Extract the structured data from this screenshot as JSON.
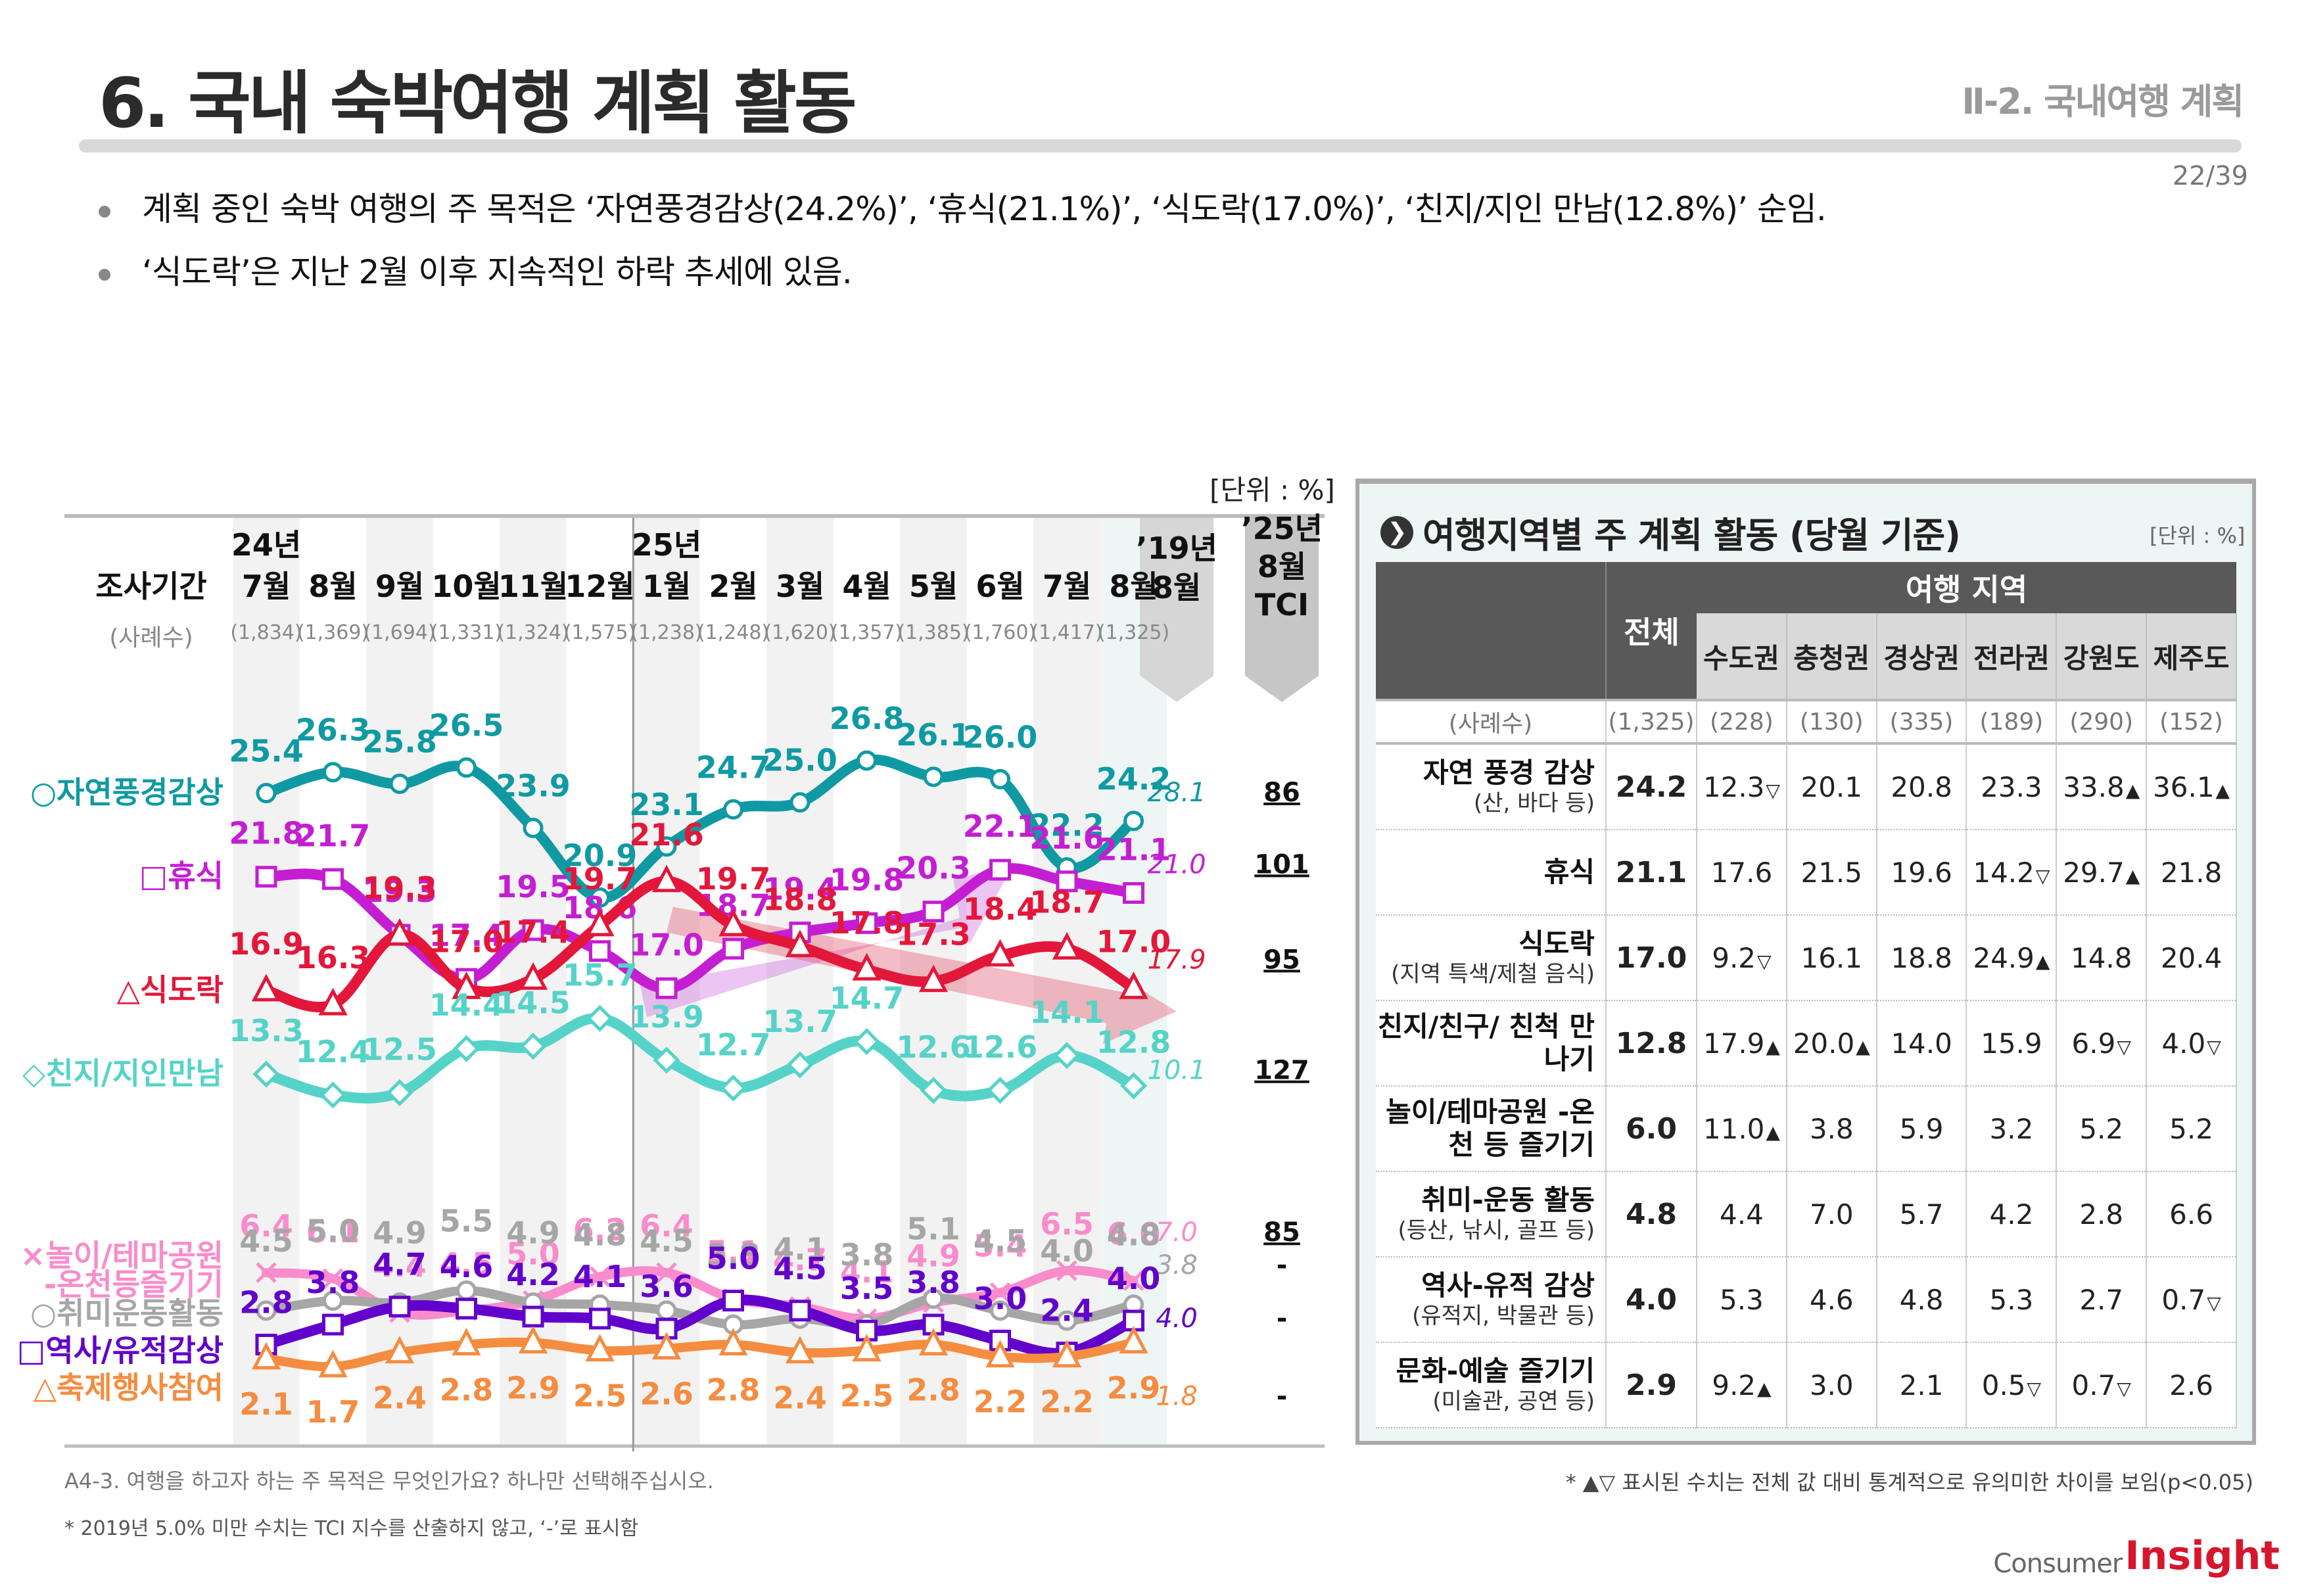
{
  "header": {
    "title": "6. 국내 숙박여행 계획 활동",
    "section": "Ⅱ-2. 국내여행 계획",
    "page": "22/39"
  },
  "bullets": [
    "계획 중인 숙박 여행의 주 목적은 ‘자연풍경감상(24.2%)’, ‘휴식(21.1%)’, ‘식도락(17.0%)’, ‘친지/지인 만남(12.8%)’ 순임.",
    "‘식도락’은 지난 2월 이후 지속적인 하락 추세에 있음."
  ],
  "chart_data": {
    "type": "line",
    "title": "",
    "unit_label": "[단위 : %]",
    "period_label": "조사기간",
    "sample_label": "(사례수)",
    "year_markers": [
      {
        "index": 0,
        "label": "24년"
      },
      {
        "index": 6,
        "label": "25년"
      }
    ],
    "categories": [
      "7월",
      "8월",
      "9월",
      "10월",
      "11월",
      "12월",
      "1월",
      "2월",
      "3월",
      "4월",
      "5월",
      "6월",
      "7월",
      "8월"
    ],
    "sample_sizes": [
      "(1,834)",
      "(1,369)",
      "(1,694)",
      "(1,331)",
      "(1,324)",
      "(1,575)",
      "(1,238)",
      "(1,248)",
      "(1,620)",
      "(1,357)",
      "(1,385)",
      "(1,760)",
      "(1,417)",
      "(1,325)"
    ],
    "ref_column_label": "’19년 8월",
    "tci_column_label": "’25년 8월 TCI",
    "series": [
      {
        "name": "자연풍경감상",
        "marker": "circle",
        "legend": "○자연풍경감상",
        "color": "#0f9aa3",
        "values": [
          25.4,
          26.3,
          25.8,
          26.5,
          23.9,
          20.9,
          23.1,
          24.7,
          25.0,
          26.8,
          26.1,
          26.0,
          22.2,
          24.2
        ],
        "ref_2019": "28.1",
        "tci": "86"
      },
      {
        "name": "휴식",
        "marker": "square",
        "legend": "□휴식",
        "color": "#c41ed3",
        "values": [
          21.8,
          21.7,
          19.3,
          17.4,
          19.5,
          18.6,
          17.0,
          18.7,
          19.4,
          19.8,
          20.3,
          22.1,
          21.6,
          21.1
        ],
        "ref_2019": "21.0",
        "tci": "101"
      },
      {
        "name": "식도락",
        "marker": "triangle",
        "legend": "△식도락",
        "color": "#e3173a",
        "values": [
          16.9,
          16.3,
          19.3,
          17.0,
          17.4,
          19.7,
          21.6,
          19.7,
          18.8,
          17.8,
          17.3,
          18.4,
          18.7,
          17.0
        ],
        "ref_2019": "17.9",
        "tci": "95"
      },
      {
        "name": "친지/지인만남",
        "marker": "diamond",
        "legend": "◇친지/지인만남",
        "color": "#56d3c8",
        "values": [
          13.3,
          12.4,
          12.5,
          14.4,
          14.5,
          15.7,
          13.9,
          12.7,
          13.7,
          14.7,
          12.6,
          12.6,
          14.1,
          12.8
        ],
        "ref_2019": "10.1",
        "tci": "127"
      },
      {
        "name": "놀이/테마공원-온천등즐기기",
        "marker": "x",
        "legend": "×놀이/테마공원-온천등즐기기",
        "color": "#f98ccb",
        "values": [
          6.4,
          6.1,
          4.4,
          4.5,
          5.0,
          6.2,
          6.4,
          5.1,
          4.7,
          4.1,
          4.9,
          5.4,
          6.5,
          6.0
        ],
        "ref_2019": "7.0",
        "tci": "85"
      },
      {
        "name": "취미운동활동",
        "marker": "circle",
        "legend": "○취미운동활동",
        "color": "#a6a6a6",
        "values": [
          4.5,
          5.0,
          4.9,
          5.5,
          4.9,
          4.8,
          4.5,
          3.8,
          4.1,
          3.8,
          5.1,
          4.5,
          4.0,
          4.8
        ],
        "ref_2019": "3.8",
        "tci": "-"
      },
      {
        "name": "역사/유적감상",
        "marker": "square",
        "legend": "□역사/유적감상",
        "color": "#6200cc",
        "values": [
          2.8,
          3.8,
          4.7,
          4.6,
          4.2,
          4.1,
          3.6,
          5.0,
          4.5,
          3.5,
          3.8,
          3.0,
          2.4,
          4.0
        ],
        "ref_2019": "4.0",
        "tci": "-"
      },
      {
        "name": "축제행사참여",
        "marker": "triangle",
        "legend": "△축제행사참여",
        "color": "#f58c40",
        "values": [
          2.1,
          1.7,
          2.4,
          2.8,
          2.9,
          2.5,
          2.6,
          2.8,
          2.4,
          2.5,
          2.8,
          2.2,
          2.2,
          2.9
        ],
        "ref_2019": "1.8",
        "tci": "-"
      }
    ],
    "annotations": [
      {
        "type": "trend-arrow",
        "series": "휴식",
        "direction": "up",
        "from": "1월",
        "to": "6월"
      },
      {
        "type": "trend-arrow",
        "series": "식도락",
        "direction": "down",
        "from": "1월",
        "to": "8월"
      }
    ]
  },
  "panel": {
    "title": "여행지역별 주 계획 활동 (당월 기준)",
    "unit": "[단위 : %]",
    "col_all": "전체",
    "col_group": "여행 지역",
    "regions": [
      "수도권",
      "충청권",
      "경상권",
      "전라권",
      "강원도",
      "제주도"
    ],
    "sample_label": "(사례수)",
    "sample_all": "(1,325)",
    "sample_regions": [
      "(228)",
      "(130)",
      "(335)",
      "(189)",
      "(290)",
      "(152)"
    ],
    "rows": [
      {
        "label": "자연 풍경 감상",
        "sub": "(산, 바다 등)",
        "all": "24.2",
        "cells": [
          {
            "v": "12.3",
            "m": "▽"
          },
          {
            "v": "20.1",
            "m": ""
          },
          {
            "v": "20.8",
            "m": ""
          },
          {
            "v": "23.3",
            "m": ""
          },
          {
            "v": "33.8",
            "m": "▲"
          },
          {
            "v": "36.1",
            "m": "▲"
          }
        ]
      },
      {
        "label": "휴식",
        "sub": "",
        "all": "21.1",
        "cells": [
          {
            "v": "17.6",
            "m": ""
          },
          {
            "v": "21.5",
            "m": ""
          },
          {
            "v": "19.6",
            "m": ""
          },
          {
            "v": "14.2",
            "m": "▽"
          },
          {
            "v": "29.7",
            "m": "▲"
          },
          {
            "v": "21.8",
            "m": ""
          }
        ]
      },
      {
        "label": "식도락",
        "sub": "(지역 특색/제철 음식)",
        "all": "17.0",
        "cells": [
          {
            "v": "9.2",
            "m": "▽"
          },
          {
            "v": "16.1",
            "m": ""
          },
          {
            "v": "18.8",
            "m": ""
          },
          {
            "v": "24.9",
            "m": "▲"
          },
          {
            "v": "14.8",
            "m": ""
          },
          {
            "v": "20.4",
            "m": ""
          }
        ]
      },
      {
        "label": "친지/친구/ 친척 만나기",
        "sub": "",
        "all": "12.8",
        "cells": [
          {
            "v": "17.9",
            "m": "▲"
          },
          {
            "v": "20.0",
            "m": "▲"
          },
          {
            "v": "14.0",
            "m": ""
          },
          {
            "v": "15.9",
            "m": ""
          },
          {
            "v": "6.9",
            "m": "▽"
          },
          {
            "v": "4.0",
            "m": "▽"
          }
        ]
      },
      {
        "label": "놀이/테마공원 -온천 등 즐기기",
        "sub": "",
        "all": "6.0",
        "cells": [
          {
            "v": "11.0",
            "m": "▲"
          },
          {
            "v": "3.8",
            "m": ""
          },
          {
            "v": "5.9",
            "m": ""
          },
          {
            "v": "3.2",
            "m": ""
          },
          {
            "v": "5.2",
            "m": ""
          },
          {
            "v": "5.2",
            "m": ""
          }
        ]
      },
      {
        "label": "취미-운동 활동",
        "sub": "(등산, 낚시, 골프 등)",
        "all": "4.8",
        "cells": [
          {
            "v": "4.4",
            "m": ""
          },
          {
            "v": "7.0",
            "m": ""
          },
          {
            "v": "5.7",
            "m": ""
          },
          {
            "v": "4.2",
            "m": ""
          },
          {
            "v": "2.8",
            "m": ""
          },
          {
            "v": "6.6",
            "m": ""
          }
        ]
      },
      {
        "label": "역사-유적 감상",
        "sub": "(유적지, 박물관 등)",
        "all": "4.0",
        "cells": [
          {
            "v": "5.3",
            "m": ""
          },
          {
            "v": "4.6",
            "m": ""
          },
          {
            "v": "4.8",
            "m": ""
          },
          {
            "v": "5.3",
            "m": ""
          },
          {
            "v": "2.7",
            "m": ""
          },
          {
            "v": "0.7",
            "m": "▽"
          }
        ]
      },
      {
        "label": "문화-예술 즐기기",
        "sub": "(미술관, 공연 등)",
        "all": "2.9",
        "cells": [
          {
            "v": "9.2",
            "m": "▲"
          },
          {
            "v": "3.0",
            "m": ""
          },
          {
            "v": "2.1",
            "m": ""
          },
          {
            "v": "0.5",
            "m": "▽"
          },
          {
            "v": "0.7",
            "m": "▽"
          },
          {
            "v": "2.6",
            "m": ""
          }
        ]
      }
    ]
  },
  "footnotes": {
    "question": "A4-3. 여행을 하고자 하는 주 목적은 무엇인가요? 하나만 선택해주십시오.",
    "tci_note": "* 2019년 5.0% 미만 수치는 TCI 지수를 산출하지 않고, ‘-’로 표시함",
    "sig_note": "* ▲▽ 표시된 수치는 전체 값 대비 통계적으로 유의미한 차이를 보임(p<0.05)"
  },
  "logo": {
    "part1": "Consumer",
    "part2": "Insight"
  }
}
